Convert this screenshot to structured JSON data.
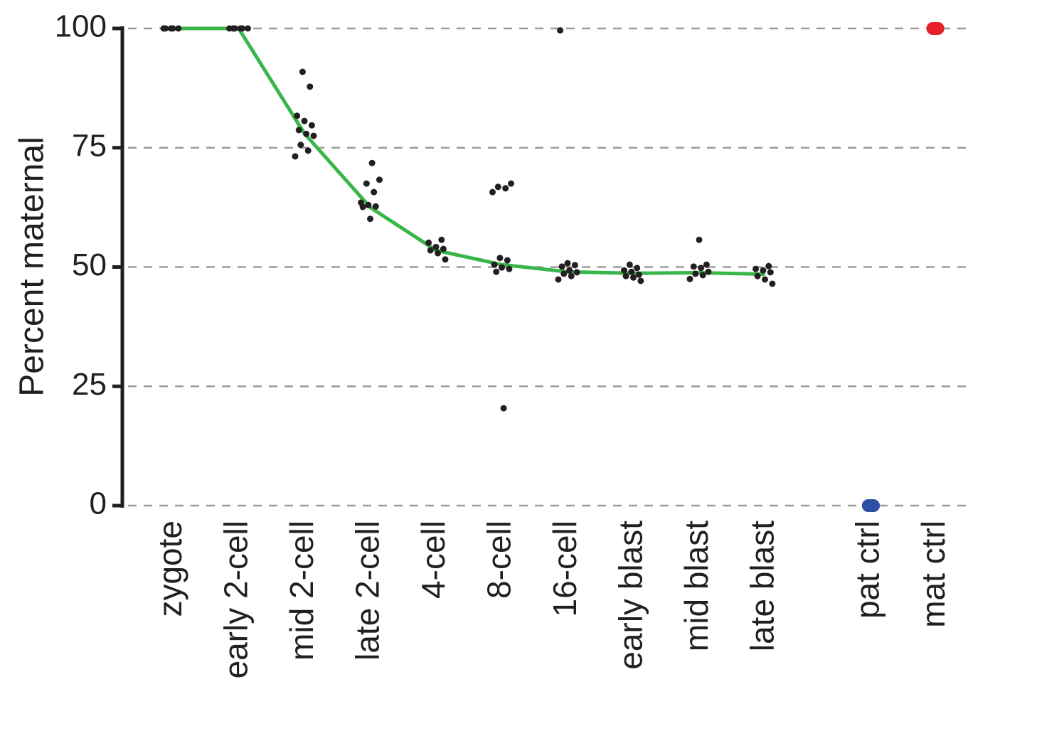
{
  "chart_data": {
    "type": "strip",
    "ylabel": "Percent maternal",
    "categories": [
      "zygote",
      "early 2-cell",
      "mid 2-cell",
      "late 2-cell",
      "4-cell",
      "8-cell",
      "16-cell",
      "early blast",
      "mid blast",
      "late blast",
      "pat ctrl",
      "mat ctrl"
    ],
    "points": [
      [
        100,
        100,
        100,
        100,
        100
      ],
      [
        100,
        100,
        100,
        100,
        100,
        100
      ],
      [
        90.9,
        87.8,
        81.7,
        80.6,
        79.7,
        78.7,
        77.9,
        77.5,
        75.6,
        74.4,
        73.2
      ],
      [
        71.8,
        68.3,
        67.5,
        65.7,
        63.5,
        63,
        62.7,
        62.6,
        60.1
      ],
      [
        55.7,
        55.1,
        54.2,
        53.8,
        53.5,
        52.9,
        51.6
      ],
      [
        67.5,
        66.8,
        66.5,
        65.7,
        51.9,
        51.4,
        50.5,
        49.9,
        49.6,
        49,
        20.4
      ],
      [
        99.6,
        50.8,
        50.4,
        50.1,
        49.3,
        48.9,
        48.6,
        48.1,
        47.4
      ],
      [
        50.5,
        49.8,
        49.3,
        49,
        48.4,
        48.1,
        47.8,
        47.1
      ],
      [
        55.7,
        50.5,
        50.1,
        49.8,
        49,
        48.6,
        48.3,
        47.5
      ],
      [
        50.2,
        49.6,
        49.3,
        48.9,
        48.1,
        47.4,
        46.5
      ],
      [
        0,
        0,
        0,
        0,
        0
      ],
      [
        100,
        100,
        100,
        100,
        100
      ]
    ],
    "point_colors": [
      "#231f20",
      "#231f20",
      "#231f20",
      "#231f20",
      "#231f20",
      "#231f20",
      "#231f20",
      "#231f20",
      "#231f20",
      "#231f20",
      "#2e4fa3",
      "#e8202a"
    ],
    "trend": {
      "color": "#39b54a",
      "values": [
        100,
        100,
        78,
        62.5,
        53.5,
        50.5,
        49,
        48.7,
        48.8,
        48.5
      ]
    },
    "ylim": [
      0,
      100
    ],
    "yticks": [
      0,
      25,
      50,
      75,
      100
    ],
    "grid": true
  }
}
